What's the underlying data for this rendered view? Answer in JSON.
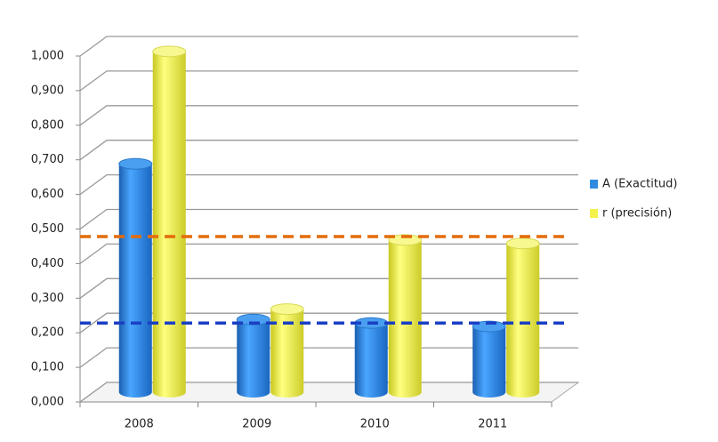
{
  "chart_data": {
    "type": "bar3d",
    "categories": [
      "2008",
      "2009",
      "2010",
      "2011"
    ],
    "series": [
      {
        "name": "A (Exactitud)",
        "color": "#2e8be0",
        "values": [
          0.66,
          0.21,
          0.2,
          0.19
        ]
      },
      {
        "name": "r (precisión)",
        "color": "#f2f24a",
        "values": [
          0.985,
          0.24,
          0.44,
          0.43
        ]
      }
    ],
    "ylim": [
      0,
      1
    ],
    "yticks": [
      {
        "value": 0,
        "label": "0,000"
      },
      {
        "value": 0.1,
        "label": "0,100"
      },
      {
        "value": 0.2,
        "label": "0,200"
      },
      {
        "value": 0.3,
        "label": "0,300"
      },
      {
        "value": 0.4,
        "label": "0,400"
      },
      {
        "value": 0.5,
        "label": "0,500"
      },
      {
        "value": 0.6,
        "label": "0,600"
      },
      {
        "value": 0.7,
        "label": "0,700"
      },
      {
        "value": 0.8,
        "label": "0,800"
      },
      {
        "value": 0.9,
        "label": "0,900"
      },
      {
        "value": 1,
        "label": "1,000"
      }
    ],
    "reference_lines": [
      {
        "value": 0.45,
        "color": "#e46c0a"
      },
      {
        "value": 0.2,
        "color": "#1a3fc4"
      }
    ],
    "grid": true,
    "legend": "right"
  }
}
